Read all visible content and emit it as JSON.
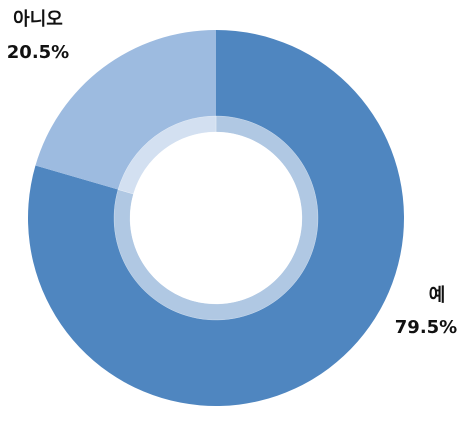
{
  "chart_data": {
    "type": "donut",
    "categories": [
      "예",
      "아니오"
    ],
    "values": [
      79.5,
      20.5
    ],
    "value_labels": [
      "79.5%",
      "20.5%"
    ],
    "colors": [
      "#4f86c0",
      "#9dbbe0"
    ]
  }
}
